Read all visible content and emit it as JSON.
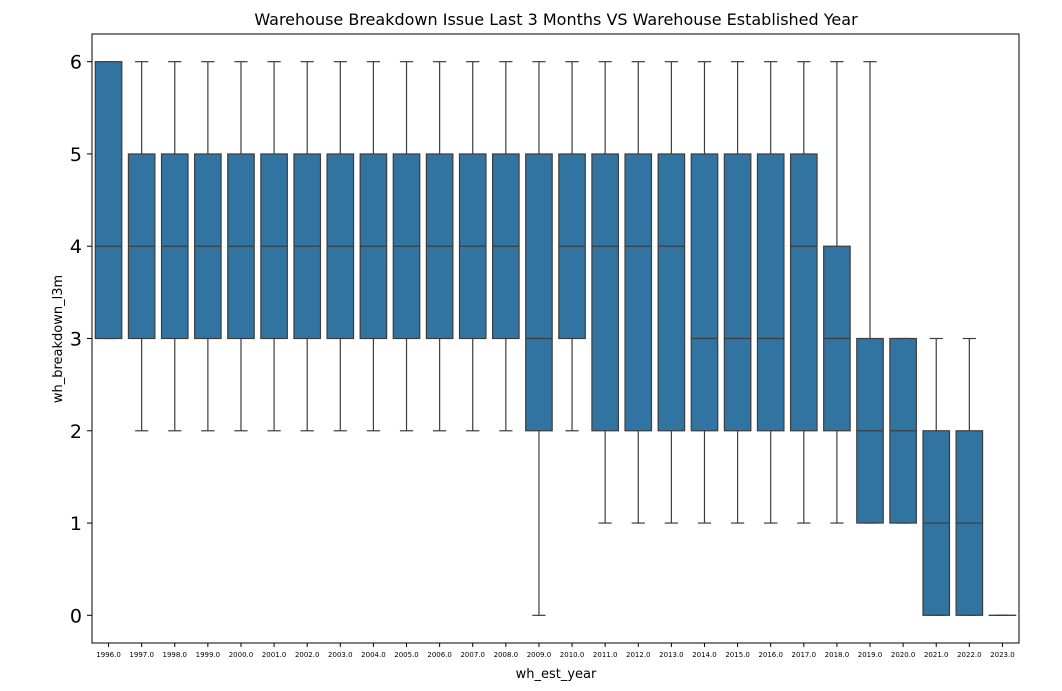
{
  "chart_data": {
    "type": "box",
    "title": "Warehouse Breakdown Issue Last 3 Months VS Warehouse Established Year",
    "xlabel": "wh_est_year",
    "ylabel": "wh_breakdown_l3m",
    "ylim": [
      -0.3,
      6.3
    ],
    "yticks": [
      "0",
      "1",
      "2",
      "3",
      "4",
      "5",
      "6"
    ],
    "box_color": "#3274a1",
    "line_color": "#3d3d3d",
    "grid": false,
    "categories": [
      "1996.0",
      "1997.0",
      "1998.0",
      "1999.0",
      "2000.0",
      "2001.0",
      "2002.0",
      "2003.0",
      "2004.0",
      "2005.0",
      "2006.0",
      "2007.0",
      "2008.0",
      "2009.0",
      "2010.0",
      "2011.0",
      "2012.0",
      "2013.0",
      "2014.0",
      "2015.0",
      "2016.0",
      "2017.0",
      "2018.0",
      "2019.0",
      "2020.0",
      "2021.0",
      "2022.0",
      "2023.0"
    ],
    "boxes": [
      {
        "whislo": 3,
        "q1": 3,
        "med": 4,
        "q3": 6,
        "whishi": 6
      },
      {
        "whislo": 2,
        "q1": 3,
        "med": 4,
        "q3": 5,
        "whishi": 6
      },
      {
        "whislo": 2,
        "q1": 3,
        "med": 4,
        "q3": 5,
        "whishi": 6
      },
      {
        "whislo": 2,
        "q1": 3,
        "med": 4,
        "q3": 5,
        "whishi": 6
      },
      {
        "whislo": 2,
        "q1": 3,
        "med": 4,
        "q3": 5,
        "whishi": 6
      },
      {
        "whislo": 2,
        "q1": 3,
        "med": 4,
        "q3": 5,
        "whishi": 6
      },
      {
        "whislo": 2,
        "q1": 3,
        "med": 4,
        "q3": 5,
        "whishi": 6
      },
      {
        "whislo": 2,
        "q1": 3,
        "med": 4,
        "q3": 5,
        "whishi": 6
      },
      {
        "whislo": 2,
        "q1": 3,
        "med": 4,
        "q3": 5,
        "whishi": 6
      },
      {
        "whislo": 2,
        "q1": 3,
        "med": 4,
        "q3": 5,
        "whishi": 6
      },
      {
        "whislo": 2,
        "q1": 3,
        "med": 4,
        "q3": 5,
        "whishi": 6
      },
      {
        "whislo": 2,
        "q1": 3,
        "med": 4,
        "q3": 5,
        "whishi": 6
      },
      {
        "whislo": 2,
        "q1": 3,
        "med": 4,
        "q3": 5,
        "whishi": 6
      },
      {
        "whislo": 0,
        "q1": 2,
        "med": 3,
        "q3": 5,
        "whishi": 6
      },
      {
        "whislo": 2,
        "q1": 3,
        "med": 4,
        "q3": 5,
        "whishi": 6
      },
      {
        "whislo": 1,
        "q1": 2,
        "med": 4,
        "q3": 5,
        "whishi": 6
      },
      {
        "whislo": 1,
        "q1": 2,
        "med": 4,
        "q3": 5,
        "whishi": 6
      },
      {
        "whislo": 1,
        "q1": 2,
        "med": 4,
        "q3": 5,
        "whishi": 6
      },
      {
        "whislo": 1,
        "q1": 2,
        "med": 3,
        "q3": 5,
        "whishi": 6
      },
      {
        "whislo": 1,
        "q1": 2,
        "med": 3,
        "q3": 5,
        "whishi": 6
      },
      {
        "whislo": 1,
        "q1": 2,
        "med": 3,
        "q3": 5,
        "whishi": 6
      },
      {
        "whislo": 1,
        "q1": 2,
        "med": 4,
        "q3": 5,
        "whishi": 6
      },
      {
        "whislo": 1,
        "q1": 2,
        "med": 3,
        "q3": 4,
        "whishi": 6
      },
      {
        "whislo": 1,
        "q1": 1,
        "med": 2,
        "q3": 3,
        "whishi": 6
      },
      {
        "whislo": 1,
        "q1": 1,
        "med": 2,
        "q3": 3,
        "whishi": 3
      },
      {
        "whislo": 0,
        "q1": 0,
        "med": 1,
        "q3": 2,
        "whishi": 3
      },
      {
        "whislo": 0,
        "q1": 0,
        "med": 1,
        "q3": 2,
        "whishi": 3
      },
      {
        "whislo": 0,
        "q1": 0,
        "med": 0,
        "q3": 0,
        "whishi": 0
      }
    ]
  }
}
